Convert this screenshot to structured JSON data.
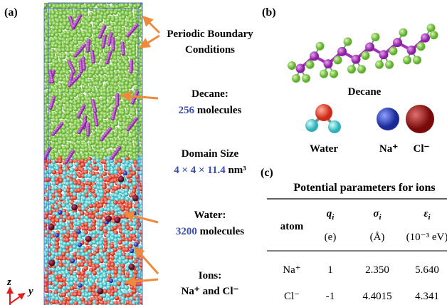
{
  "panel_a": {
    "label": "(a)",
    "annotations": {
      "boundary": [
        "Periodic Boundary",
        "Conditions"
      ],
      "decane": {
        "name": "Decane:",
        "count": "256",
        "unit": "molecules"
      },
      "domain": {
        "name": "Domain Size",
        "dims": "4 × 4 × 11.4",
        "unit": "nm³"
      },
      "water": {
        "name": "Water:",
        "count": "3200",
        "unit": "molecules"
      },
      "ions": {
        "name": "Ions:",
        "species": "Na⁺ and Cl⁻"
      }
    },
    "axes": [
      "z",
      "y"
    ]
  },
  "panel_b": {
    "label": "(b)",
    "molecules": [
      "Decane",
      "Water"
    ],
    "ions": [
      "Na⁺",
      "Cl⁻"
    ]
  },
  "panel_c": {
    "label": "(c)",
    "table": {
      "title": "Potential parameters for ions",
      "columns": [
        {
          "name": "atom"
        },
        {
          "symbol": "q",
          "subscript": "i",
          "unit": "(e)"
        },
        {
          "symbol": "σ",
          "subscript": "i",
          "unit": "(Å)"
        },
        {
          "symbol": "ε",
          "subscript": "i",
          "unit": "(10⁻³ eV)"
        }
      ],
      "rows": [
        [
          "Na⁺",
          "1",
          "2.350",
          "5.640"
        ],
        [
          "Cl⁻",
          "-1",
          "4.4015",
          "4.341"
        ]
      ]
    }
  }
}
